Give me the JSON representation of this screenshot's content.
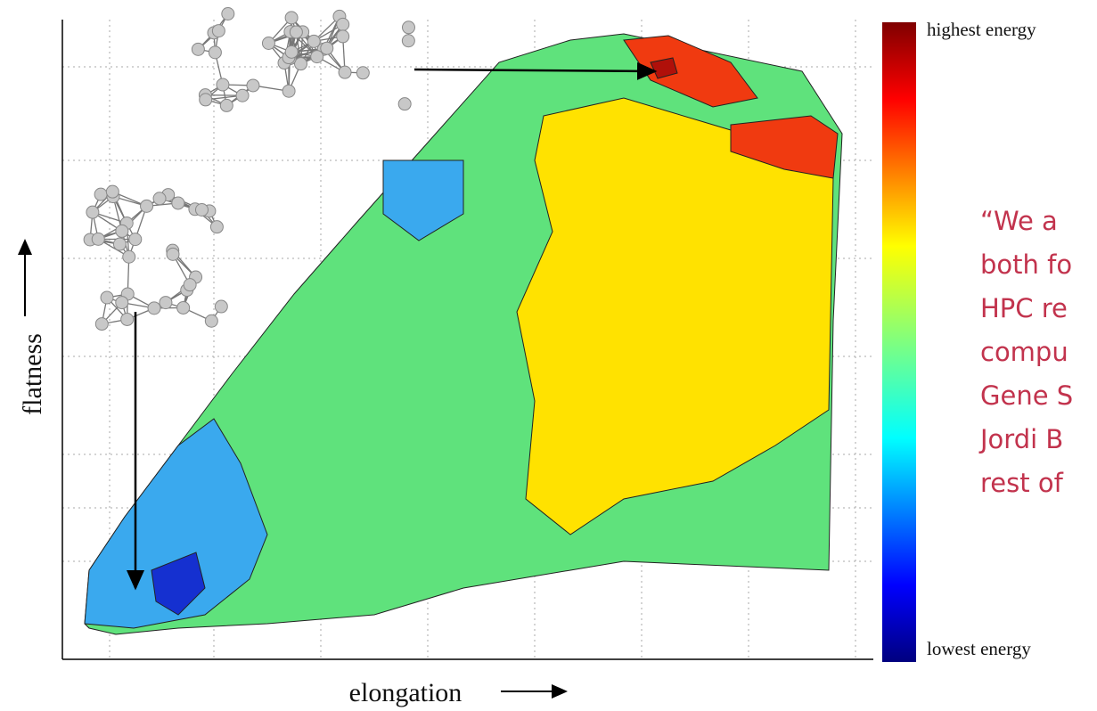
{
  "colorbar": {
    "top_label": "highest energy",
    "bottom_label": "lowest energy"
  },
  "axes": {
    "y_label": "flatness",
    "x_label": "elongation"
  },
  "quote": {
    "lines": [
      "“We a",
      "both fo",
      "HPC re",
      "compu",
      "Gene S",
      "Jordi B",
      "rest of"
    ]
  }
}
